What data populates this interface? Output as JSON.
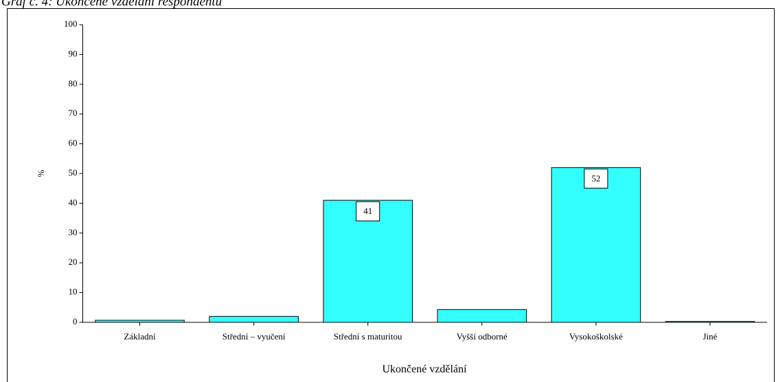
{
  "chart_data": {
    "type": "bar",
    "title": "Graf č. 4: Ukončené vzdělání respondentů",
    "categories": [
      "Základní",
      "Střední – vyučení",
      "Střední s maturitou",
      "Vyšší odborné",
      "Vysokoškolské",
      "Jiné"
    ],
    "values": [
      0.7,
      2,
      41,
      4.3,
      52,
      0.3
    ],
    "value_labels": [
      null,
      null,
      "41",
      null,
      "52",
      null
    ],
    "color": "#33ffff",
    "ylabel": "%",
    "xlabel": "Ukončené vzdělání",
    "ylim": [
      0,
      100
    ],
    "yticks": [
      0,
      10,
      20,
      30,
      40,
      50,
      60,
      70,
      80,
      90,
      100
    ]
  }
}
